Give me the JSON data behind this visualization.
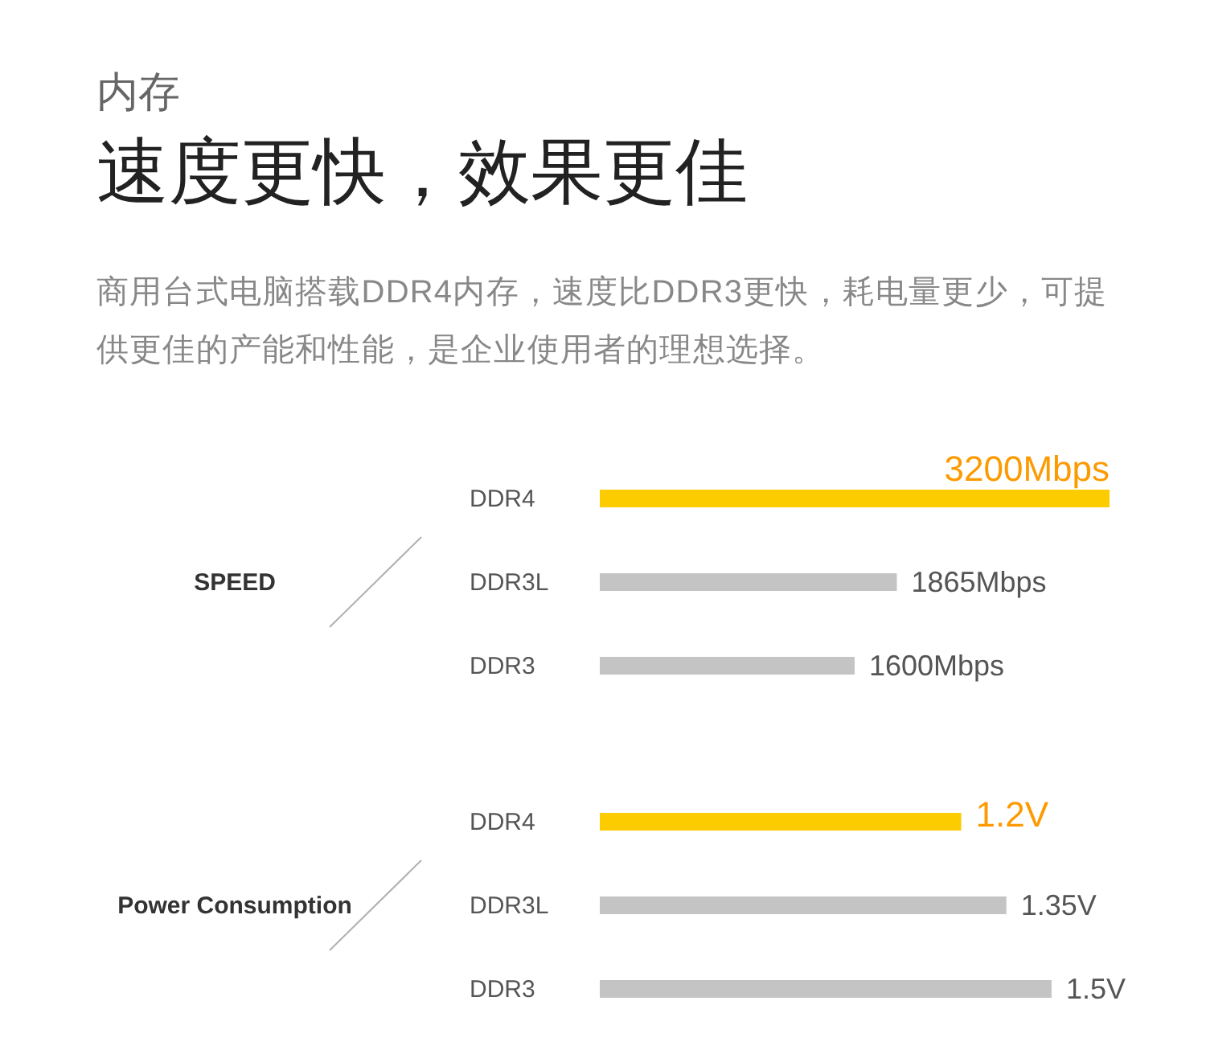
{
  "chart_data": [
    {
      "type": "other",
      "subtitle": "内存",
      "title": "速度更快，效果更佳",
      "annotations": [
        "商用台式电脑搭载DDR4内存，速度比DDR3更快，耗电量更少，可提供更佳的产能和性能，是企业使用者的理想选择。"
      ]
    },
    {
      "type": "bar",
      "orientation": "horizontal",
      "ylabel": "SPEED",
      "categories": [
        "DDR4",
        "DDR3L",
        "DDR3"
      ],
      "values": [
        3200,
        1865,
        1600
      ],
      "value_labels": [
        "3200Mbps",
        "1865Mbps",
        "1600Mbps"
      ],
      "colors": [
        "#fccc00",
        "#c4c4c4",
        "#c4c4c4"
      ]
    },
    {
      "type": "bar",
      "orientation": "horizontal",
      "ylabel": "Power Consumption",
      "categories": [
        "DDR4",
        "DDR3L",
        "DDR3"
      ],
      "values": [
        1.2,
        1.35,
        1.5
      ],
      "value_labels": [
        "1.2V",
        "1.35V",
        "1.5V"
      ],
      "colors": [
        "#fccc00",
        "#c4c4c4",
        "#c4c4c4"
      ]
    }
  ]
}
